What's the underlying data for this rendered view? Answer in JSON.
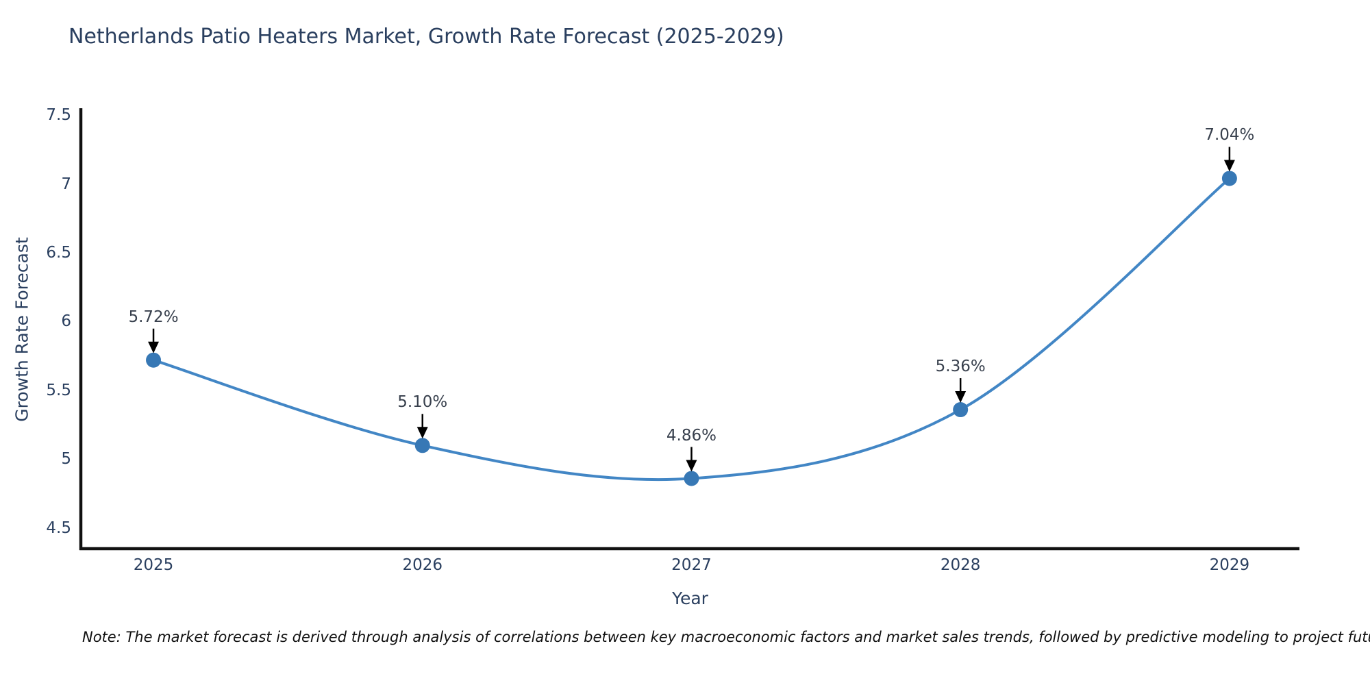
{
  "chart_data": {
    "type": "line",
    "line_shape": "spline",
    "title": "Netherlands Patio Heaters Market, Growth Rate Forecast (2025-2029)",
    "xlabel": "Year",
    "ylabel": "Growth Rate Forecast",
    "x": [
      2025,
      2026,
      2027,
      2028,
      2029
    ],
    "y": [
      5.72,
      5.1,
      4.86,
      5.36,
      7.04
    ],
    "point_labels": [
      "5.72%",
      "5.10%",
      "4.86%",
      "5.36%",
      "7.04%"
    ],
    "x_tick_values": [
      2025,
      2026,
      2027,
      2028,
      2029
    ],
    "x_tick_labels": [
      "2025",
      "2026",
      "2027",
      "2028",
      "2029"
    ],
    "y_tick_values": [
      4.5,
      5,
      5.5,
      6,
      6.5,
      7,
      7.5
    ],
    "y_tick_labels": [
      "4.5",
      "5",
      "5.5",
      "6",
      "6.5",
      "7",
      "7.5"
    ],
    "xlim": [
      2024.73,
      2029.26
    ],
    "ylim": [
      4.35,
      7.54
    ],
    "grid": false,
    "legend": false,
    "colors": {
      "line": "#4286c5",
      "marker": "#3778b5",
      "axis": "#111111",
      "tick_text": "#2a3f5f",
      "annotation_text": "#38404d",
      "annotation_arrow": "#000000"
    }
  },
  "footnote": "Note: The market forecast is derived through analysis of correlations between key macroeconomic factors and market sales trends, followed by predictive modeling to project future sales"
}
